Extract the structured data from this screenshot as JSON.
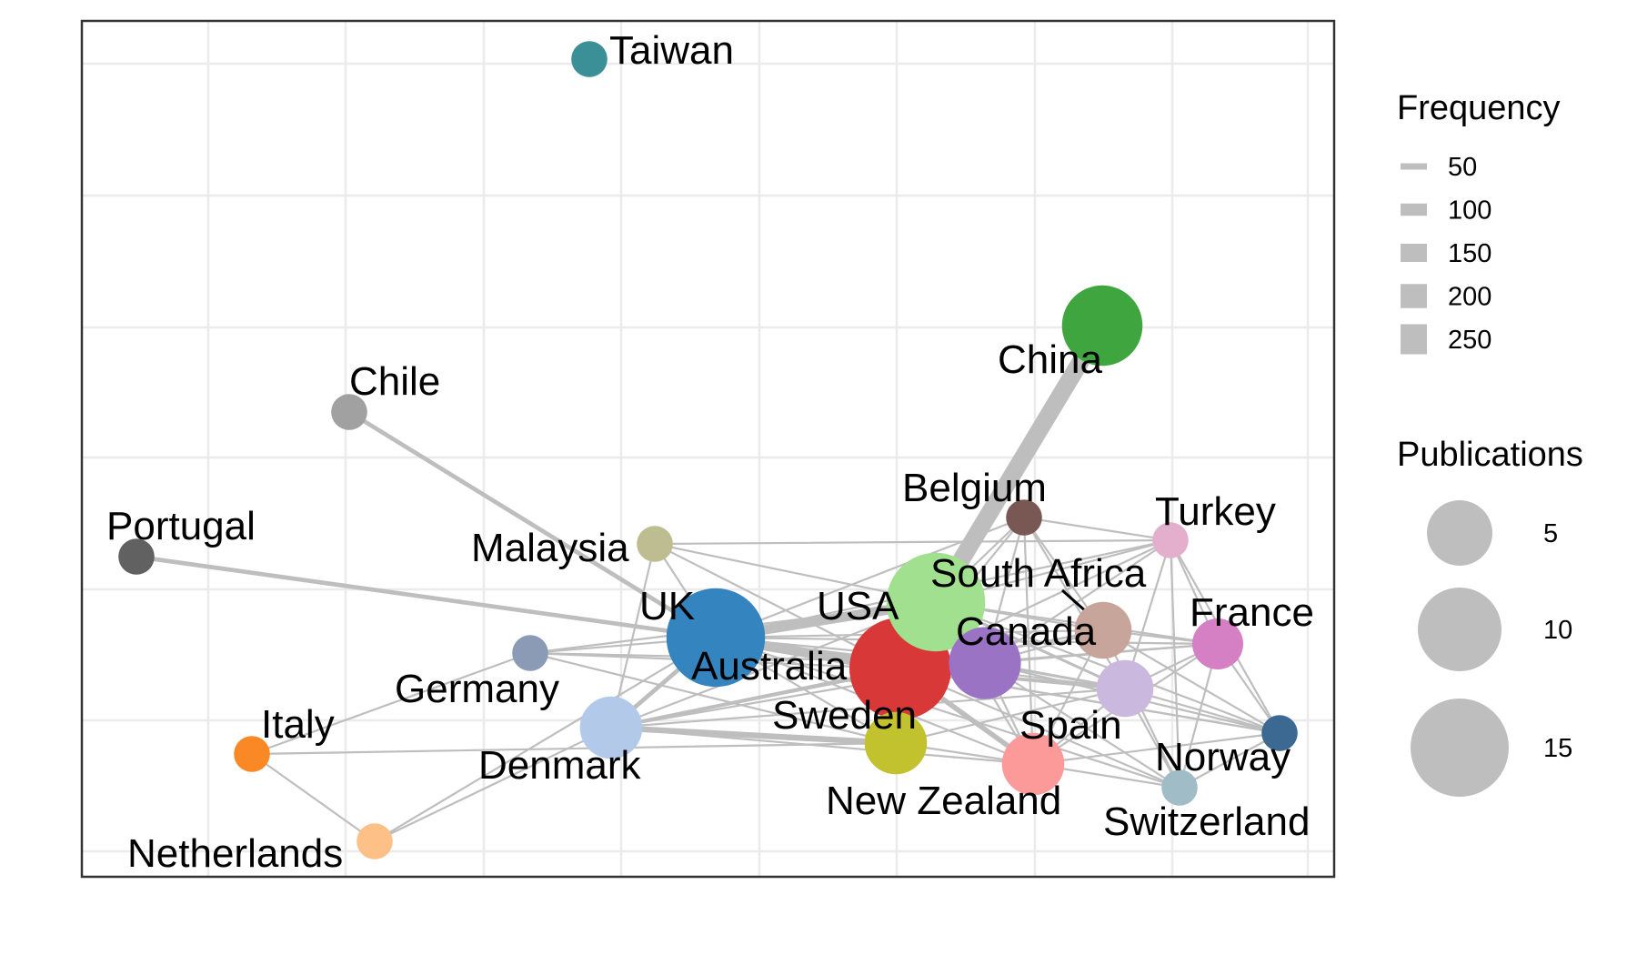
{
  "nodes": [
    {
      "id": "Taiwan",
      "label": "Taiwan",
      "publications": 2,
      "color": "#3b8f96"
    },
    {
      "id": "China",
      "label": "China",
      "publications": 10,
      "color": "#3fa63f"
    },
    {
      "id": "Chile",
      "label": "Chile",
      "publications": 2,
      "color": "#a1a1a1"
    },
    {
      "id": "Portugal",
      "label": "Portugal",
      "publications": 2,
      "color": "#616161"
    },
    {
      "id": "Belgium",
      "label": "Belgium",
      "publications": 2,
      "color": "#795854"
    },
    {
      "id": "Turkey",
      "label": "Turkey",
      "publications": 2,
      "color": "#e4afcd"
    },
    {
      "id": "Malaysia",
      "label": "Malaysia",
      "publications": 2,
      "color": "#bdbd91"
    },
    {
      "id": "SouthAfrica",
      "label": "South Africa",
      "publications": 5,
      "color": "#c7a59b"
    },
    {
      "id": "UK",
      "label": "UK",
      "publications": 15,
      "color": "#3384bf"
    },
    {
      "id": "USA",
      "label": "USA",
      "publications": 15,
      "color": "#a1e08f"
    },
    {
      "id": "Canada",
      "label": "Canada",
      "publications": 8,
      "color": "#9b73c5"
    },
    {
      "id": "France",
      "label": "France",
      "publications": 4,
      "color": "#d57fc5"
    },
    {
      "id": "Germany",
      "label": "Germany",
      "publications": 2,
      "color": "#8b9bb5"
    },
    {
      "id": "Australia",
      "label": "Australia",
      "publications": 16,
      "color": "#d83838"
    },
    {
      "id": "Spain",
      "label": "Spain",
      "publications": 5,
      "color": "#cbb8de"
    },
    {
      "id": "Italy",
      "label": "Italy",
      "publications": 2,
      "color": "#fa8825"
    },
    {
      "id": "Sweden",
      "label": "Sweden",
      "publications": 6,
      "color": "#c2c22f"
    },
    {
      "id": "Denmark",
      "label": "Denmark",
      "publications": 6,
      "color": "#b2c9ea"
    },
    {
      "id": "Norway",
      "label": "Norway",
      "publications": 2,
      "color": "#3b6992"
    },
    {
      "id": "NewZealand",
      "label": "New Zealand",
      "publications": 6,
      "color": "#fc9999"
    },
    {
      "id": "Switzerland",
      "label": "Switzerland",
      "publications": 2,
      "color": "#a0bcc6"
    },
    {
      "id": "Netherlands",
      "label": "Netherlands",
      "publications": 2,
      "color": "#fdc087"
    }
  ],
  "edges": [
    {
      "from": "China",
      "to": "USA",
      "frequency": 250
    },
    {
      "from": "Chile",
      "to": "UK",
      "frequency": 80
    },
    {
      "from": "Portugal",
      "to": "UK",
      "frequency": 80
    },
    {
      "from": "UK",
      "to": "USA",
      "frequency": 150
    },
    {
      "from": "UK",
      "to": "Australia",
      "frequency": 150
    },
    {
      "from": "Denmark",
      "to": "Sweden",
      "frequency": 100
    },
    {
      "from": "Denmark",
      "to": "UK",
      "frequency": 80
    },
    {
      "from": "Australia",
      "to": "NewZealand",
      "frequency": 90
    },
    {
      "from": "Australia",
      "to": "Sweden",
      "frequency": 80
    },
    {
      "from": "USA",
      "to": "Canada",
      "frequency": 80
    },
    {
      "from": "Australia",
      "to": "Canada",
      "frequency": 80
    },
    {
      "from": "Australia",
      "to": "Spain",
      "frequency": 70
    },
    {
      "from": "Denmark",
      "to": "Australia",
      "frequency": 70
    },
    {
      "from": "USA",
      "to": "Spain",
      "frequency": 60
    },
    {
      "from": "Canada",
      "to": "Spain",
      "frequency": 60
    },
    {
      "from": "Malaysia",
      "to": "UK",
      "frequency": 50
    },
    {
      "from": "Malaysia",
      "to": "USA",
      "frequency": 50
    },
    {
      "from": "Malaysia",
      "to": "Australia",
      "frequency": 50
    },
    {
      "from": "Malaysia",
      "to": "Turkey",
      "frequency": 50
    },
    {
      "from": "Malaysia",
      "to": "Denmark",
      "frequency": 50
    },
    {
      "from": "Belgium",
      "to": "USA",
      "frequency": 50
    },
    {
      "from": "Belgium",
      "to": "Turkey",
      "frequency": 50
    },
    {
      "from": "Belgium",
      "to": "Canada",
      "frequency": 50
    },
    {
      "from": "Belgium",
      "to": "Spain",
      "frequency": 50
    },
    {
      "from": "Belgium",
      "to": "Australia",
      "frequency": 50
    },
    {
      "from": "Belgium",
      "to": "SouthAfrica",
      "frequency": 50
    },
    {
      "from": "Belgium",
      "to": "NewZealand",
      "frequency": 50
    },
    {
      "from": "Turkey",
      "to": "USA",
      "frequency": 50
    },
    {
      "from": "Turkey",
      "to": "France",
      "frequency": 50
    },
    {
      "from": "Turkey",
      "to": "Norway",
      "frequency": 50
    },
    {
      "from": "Turkey",
      "to": "Spain",
      "frequency": 50
    },
    {
      "from": "Turkey",
      "to": "Australia",
      "frequency": 50
    },
    {
      "from": "Turkey",
      "to": "Canada",
      "frequency": 50
    },
    {
      "from": "Turkey",
      "to": "Switzerland",
      "frequency": 50
    },
    {
      "from": "SouthAfrica",
      "to": "USA",
      "frequency": 50
    },
    {
      "from": "SouthAfrica",
      "to": "France",
      "frequency": 50
    },
    {
      "from": "SouthAfrica",
      "to": "Norway",
      "frequency": 50
    },
    {
      "from": "SouthAfrica",
      "to": "Australia",
      "frequency": 50
    },
    {
      "from": "SouthAfrica",
      "to": "NewZealand",
      "frequency": 50
    },
    {
      "from": "SouthAfrica",
      "to": "Switzerland",
      "frequency": 50
    },
    {
      "from": "SouthAfrica",
      "to": "Denmark",
      "frequency": 50
    },
    {
      "from": "France",
      "to": "Norway",
      "frequency": 50
    },
    {
      "from": "France",
      "to": "Spain",
      "frequency": 50
    },
    {
      "from": "France",
      "to": "USA",
      "frequency": 50
    },
    {
      "from": "France",
      "to": "Australia",
      "frequency": 50
    },
    {
      "from": "France",
      "to": "Switzerland",
      "frequency": 50
    },
    {
      "from": "France",
      "to": "UK",
      "frequency": 50
    },
    {
      "from": "France",
      "to": "NewZealand",
      "frequency": 50
    },
    {
      "from": "Spain",
      "to": "Norway",
      "frequency": 50
    },
    {
      "from": "Spain",
      "to": "Switzerland",
      "frequency": 50
    },
    {
      "from": "Spain",
      "to": "NewZealand",
      "frequency": 50
    },
    {
      "from": "Spain",
      "to": "UK",
      "frequency": 50
    },
    {
      "from": "Spain",
      "to": "Denmark",
      "frequency": 50
    },
    {
      "from": "Spain",
      "to": "Sweden",
      "frequency": 50
    },
    {
      "from": "Norway",
      "to": "Canada",
      "frequency": 50
    },
    {
      "from": "Norway",
      "to": "Australia",
      "frequency": 50
    },
    {
      "from": "Norway",
      "to": "USA",
      "frequency": 50
    },
    {
      "from": "Norway",
      "to": "Switzerland",
      "frequency": 50
    },
    {
      "from": "Norway",
      "to": "NewZealand",
      "frequency": 50
    },
    {
      "from": "Norway",
      "to": "UK",
      "frequency": 50
    },
    {
      "from": "Switzerland",
      "to": "Australia",
      "frequency": 50
    },
    {
      "from": "Switzerland",
      "to": "Canada",
      "frequency": 50
    },
    {
      "from": "Switzerland",
      "to": "NewZealand",
      "frequency": 50
    },
    {
      "from": "Switzerland",
      "to": "UK",
      "frequency": 50
    },
    {
      "from": "Germany",
      "to": "UK",
      "frequency": 50
    },
    {
      "from": "Germany",
      "to": "USA",
      "frequency": 50
    },
    {
      "from": "Germany",
      "to": "Australia",
      "frequency": 50
    },
    {
      "from": "Germany",
      "to": "Canada",
      "frequency": 50
    },
    {
      "from": "Germany",
      "to": "Sweden",
      "frequency": 50
    },
    {
      "from": "Italy",
      "to": "Netherlands",
      "frequency": 50
    },
    {
      "from": "Italy",
      "to": "Sweden",
      "frequency": 50
    },
    {
      "from": "Italy",
      "to": "Germany",
      "frequency": 50
    },
    {
      "from": "Netherlands",
      "to": "UK",
      "frequency": 50
    },
    {
      "from": "Netherlands",
      "to": "Denmark",
      "frequency": 50
    },
    {
      "from": "Denmark",
      "to": "USA",
      "frequency": 50
    },
    {
      "from": "Denmark",
      "to": "Canada",
      "frequency": 50
    },
    {
      "from": "Denmark",
      "to": "NewZealand",
      "frequency": 50
    },
    {
      "from": "UK",
      "to": "Canada",
      "frequency": 50
    },
    {
      "from": "UK",
      "to": "Sweden",
      "frequency": 50
    },
    {
      "from": "UK",
      "to": "NewZealand",
      "frequency": 50
    },
    {
      "from": "UK",
      "to": "SouthAfrica",
      "frequency": 50
    },
    {
      "from": "UK",
      "to": "Turkey",
      "frequency": 50
    },
    {
      "from": "UK",
      "to": "Belgium",
      "frequency": 50
    },
    {
      "from": "Canada",
      "to": "NewZealand",
      "frequency": 50
    },
    {
      "from": "Canada",
      "to": "SouthAfrica",
      "frequency": 50
    },
    {
      "from": "Canada",
      "to": "France",
      "frequency": 50
    },
    {
      "from": "USA",
      "to": "NewZealand",
      "frequency": 50
    },
    {
      "from": "USA",
      "to": "Sweden",
      "frequency": 50
    },
    {
      "from": "Sweden",
      "to": "NewZealand",
      "frequency": 50
    }
  ],
  "legend": {
    "frequency": {
      "title": "Frequency",
      "items": [
        "50",
        "100",
        "150",
        "200",
        "250"
      ],
      "values": [
        50,
        100,
        150,
        200,
        250
      ],
      "color": "#bebebe"
    },
    "publications": {
      "title": "Publications",
      "items": [
        "5",
        "10",
        "15"
      ],
      "values": [
        5,
        10,
        15
      ],
      "color": "#bebebe"
    }
  }
}
